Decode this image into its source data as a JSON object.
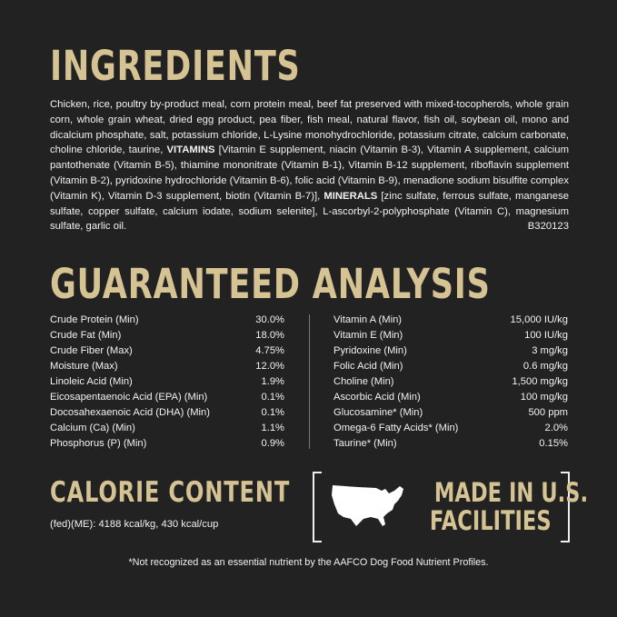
{
  "ingredients": {
    "title": "INGREDIENTS",
    "text1": "Chicken, rice, poultry by-product meal, corn protein meal, beef fat preserved with mixed-tocopherols, whole grain corn, whole grain wheat, dried egg product, pea fiber, fish meal, natural flavor, fish oil, soybean oil, mono and dicalcium phosphate, salt, potassium chloride, L-Lysine monohydrochloride, potassium citrate, calcium carbonate, choline chloride, taurine, ",
    "vitamins_label": "VITAMINS",
    "text2": " [Vitamin E supplement, niacin (Vitamin B-3), Vitamin A supplement, calcium pantothenate (Vitamin B-5), thiamine mononitrate (Vitamin B-1), Vitamin B-12 supplement, riboflavin supplement (Vitamin B-2), pyridoxine hydrochloride (Vitamin B-6), folic acid (Vitamin B-9), menadione sodium bisulfite complex (Vitamin K), Vitamin D-3 supplement, biotin (Vitamin B-7)], ",
    "minerals_label": "MINERALS",
    "text3": " [zinc sulfate, ferrous sulfate, manganese sulfate, copper sulfate, calcium iodate, sodium selenite], L-ascorbyl-2-polyphosphate (Vitamin C), magnesium sulfate, garlic oil.",
    "code": "B320123"
  },
  "analysis": {
    "title": "GUARANTEED ANALYSIS",
    "left": [
      {
        "name": "Crude Protein (Min)",
        "value": "30.0%"
      },
      {
        "name": "Crude Fat (Min)",
        "value": "18.0%"
      },
      {
        "name": "Crude Fiber (Max)",
        "value": "4.75%"
      },
      {
        "name": "Moisture (Max)",
        "value": "12.0%"
      },
      {
        "name": "Linoleic Acid (Min)",
        "value": "1.9%"
      },
      {
        "name": "Eicosapentaenoic Acid (EPA) (Min)",
        "value": "0.1%"
      },
      {
        "name": "Docosahexaenoic Acid (DHA) (Min)",
        "value": "0.1%"
      },
      {
        "name": "Calcium (Ca) (Min)",
        "value": "1.1%"
      },
      {
        "name": "Phosphorus (P) (Min)",
        "value": "0.9%"
      }
    ],
    "right": [
      {
        "name": "Vitamin A (Min)",
        "value": "15,000 IU/kg"
      },
      {
        "name": "Vitamin E (Min)",
        "value": "100 IU/kg"
      },
      {
        "name": "Pyridoxine (Min)",
        "value": "3 mg/kg"
      },
      {
        "name": "Folic Acid (Min)",
        "value": "0.6 mg/kg"
      },
      {
        "name": "Choline (Min)",
        "value": "1,500 mg/kg"
      },
      {
        "name": "Ascorbic Acid (Min)",
        "value": "100 mg/kg"
      },
      {
        "name": "Glucosamine* (Min)",
        "value": "500 ppm"
      },
      {
        "name": "Omega-6 Fatty Acids* (Min)",
        "value": "2.0%"
      },
      {
        "name": "Taurine* (Min)",
        "value": "0.15%"
      }
    ]
  },
  "calorie": {
    "title": "CALORIE CONTENT",
    "text": "(fed)(ME): 4188 kcal/kg, 430 kcal/cup"
  },
  "badge": {
    "line1": "MADE IN U.S.",
    "line2": "FACILITIES",
    "icon": "usa-map-icon"
  },
  "footnote": "*Not recognized as an essential nutrient by the AAFCO Dog Food Nutrient Profiles.",
  "colors": {
    "background": "#222222",
    "gold": "#d6c393",
    "text": "#f2f2f2"
  }
}
